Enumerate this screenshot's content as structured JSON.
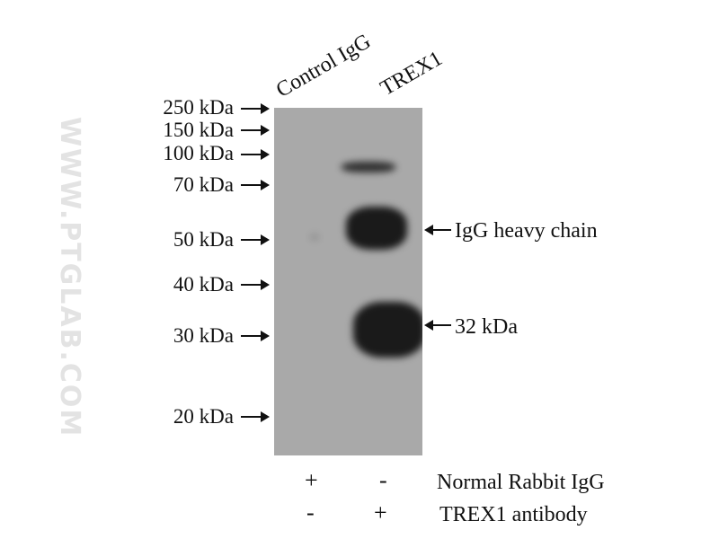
{
  "lanes": [
    "Control IgG",
    "TREX1"
  ],
  "markers": [
    "250 kDa",
    "150 kDa",
    "100 kDa",
    "70 kDa",
    "50 kDa",
    "40 kDa",
    "30 kDa",
    "20 kDa"
  ],
  "annotations": {
    "heavy_chain": "IgG heavy chain",
    "target": "32 kDa"
  },
  "conditions": [
    {
      "label": "Normal Rabbit IgG",
      "lane1": "+",
      "lane2": "-"
    },
    {
      "label": "TREX1 antibody",
      "lane1": "-",
      "lane2": "+"
    }
  ],
  "watermark": "WWW.PTGLAB.COM",
  "colors": {
    "membrane": "#a9a9a9",
    "band": "#1a1a1a"
  }
}
